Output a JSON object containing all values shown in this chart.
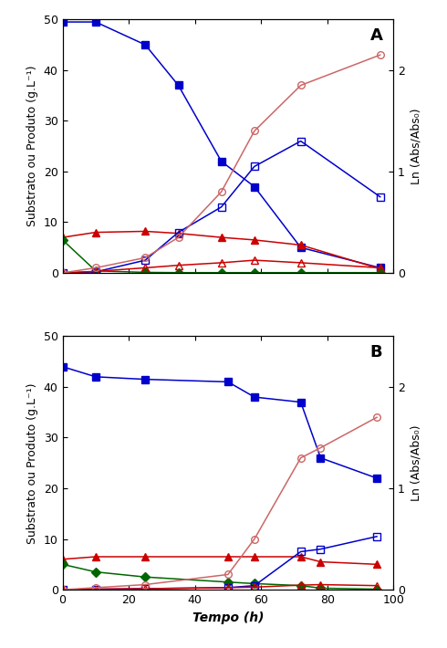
{
  "panel_A": {
    "xylose": {
      "x": [
        0,
        10,
        25,
        35,
        48,
        58,
        72,
        96
      ],
      "y": [
        49.5,
        49.5,
        45,
        37,
        22,
        17,
        5,
        1
      ],
      "color": "#0000cc",
      "marker": "s",
      "filled": true
    },
    "arabinose": {
      "x": [
        0,
        10,
        25,
        35,
        48,
        58,
        72,
        96
      ],
      "y": [
        7.0,
        8.0,
        8.2,
        7.8,
        7.0,
        6.5,
        5.5,
        0.8
      ],
      "color": "#cc0000",
      "marker": "^",
      "filled": true
    },
    "glucose": {
      "x": [
        0,
        10,
        25,
        35,
        48,
        58,
        72,
        96
      ],
      "y": [
        6.5,
        0.4,
        0.1,
        0.05,
        0.05,
        0.05,
        0.05,
        0.05
      ],
      "color": "#006600",
      "marker": "D",
      "filled": true
    },
    "xylitol": {
      "x": [
        0,
        10,
        25,
        35,
        48,
        58,
        72,
        96
      ],
      "y": [
        0,
        0.2,
        2.5,
        8.0,
        13.0,
        21.0,
        26.0,
        15.0
      ],
      "color": "#0000cc",
      "marker": "s",
      "filled": false
    },
    "arabitol": {
      "x": [
        0,
        10,
        25,
        35,
        48,
        58,
        72,
        96
      ],
      "y": [
        0,
        0.3,
        1.0,
        1.5,
        2.0,
        2.5,
        2.0,
        1.0
      ],
      "color": "#cc0000",
      "marker": "^",
      "filled": false
    },
    "growth": {
      "x": [
        0,
        10,
        25,
        35,
        48,
        58,
        72,
        96
      ],
      "y": [
        0,
        0.05,
        0.15,
        0.35,
        0.8,
        1.4,
        1.85,
        2.15
      ],
      "color": "#cc6666",
      "marker": "o",
      "filled": false
    },
    "label": "A"
  },
  "panel_B": {
    "xylose": {
      "x": [
        0,
        10,
        25,
        50,
        58,
        72,
        78,
        95
      ],
      "y": [
        44,
        42,
        41.5,
        41,
        38,
        37,
        26,
        22
      ],
      "color": "#0000cc",
      "marker": "s",
      "filled": true
    },
    "arabinose": {
      "x": [
        0,
        10,
        25,
        50,
        58,
        72,
        78,
        95
      ],
      "y": [
        6.0,
        6.5,
        6.5,
        6.5,
        6.5,
        6.5,
        5.5,
        5.0
      ],
      "color": "#cc0000",
      "marker": "^",
      "filled": true
    },
    "glucose": {
      "x": [
        0,
        10,
        25,
        50,
        58,
        72,
        78,
        95
      ],
      "y": [
        5.0,
        3.5,
        2.5,
        1.5,
        1.2,
        0.8,
        0.3,
        0.1
      ],
      "color": "#006600",
      "marker": "D",
      "filled": true
    },
    "xylitol": {
      "x": [
        0,
        10,
        25,
        50,
        58,
        72,
        78,
        95
      ],
      "y": [
        0,
        0.1,
        0.2,
        0.4,
        0.8,
        7.5,
        8.0,
        10.5
      ],
      "color": "#0000cc",
      "marker": "s",
      "filled": false
    },
    "arabitol": {
      "x": [
        0,
        10,
        25,
        50,
        58,
        72,
        78,
        95
      ],
      "y": [
        0,
        0.1,
        0.2,
        0.4,
        0.5,
        0.9,
        1.0,
        0.8
      ],
      "color": "#cc0000",
      "marker": "^",
      "filled": false
    },
    "growth": {
      "x": [
        0,
        10,
        25,
        50,
        58,
        72,
        78,
        95
      ],
      "y": [
        0,
        0.02,
        0.05,
        0.15,
        0.5,
        1.3,
        1.4,
        1.7
      ],
      "color": "#cc6666",
      "marker": "o",
      "filled": false
    },
    "label": "B"
  },
  "ylim_left": [
    0,
    50
  ],
  "ylim_right": [
    0,
    2.5
  ],
  "xlim": [
    0,
    100
  ],
  "xticks": [
    0,
    20,
    40,
    60,
    80,
    100
  ],
  "yticks_left": [
    0,
    10,
    20,
    30,
    40,
    50
  ],
  "yticks_right": [
    0,
    1,
    2
  ],
  "ylabel_left": "Substrato ou Produto (g.L⁻¹)",
  "ylabel_right": "Ln (Abs/Abs₀)",
  "xlabel": "Tempo (h)",
  "background_color": "#ffffff"
}
